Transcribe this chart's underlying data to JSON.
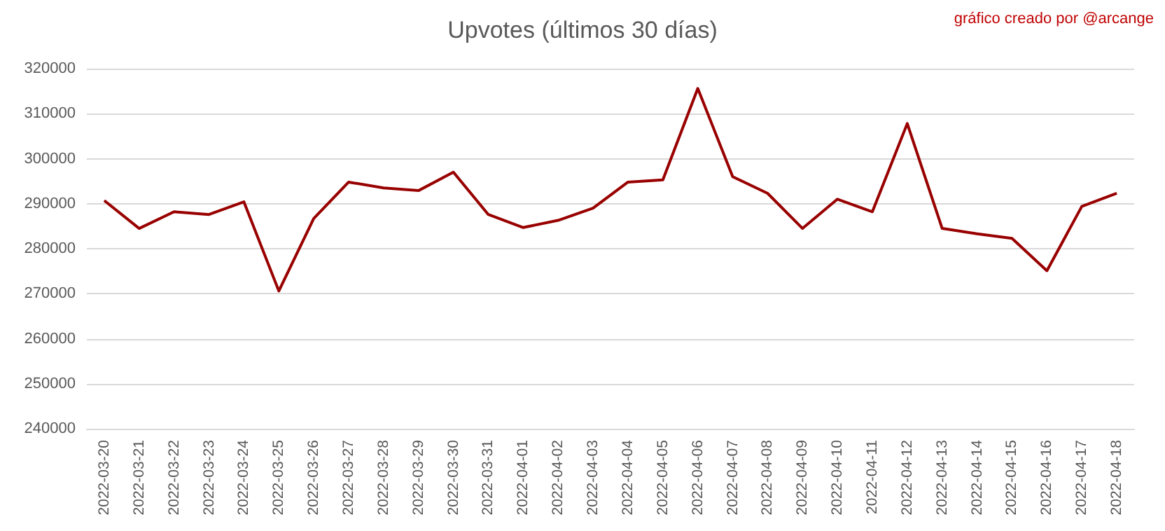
{
  "chart_data": {
    "type": "line",
    "title": "Upvotes (últimos 30 días)",
    "annotations": [
      "gráfico creado por @arcange"
    ],
    "categories": [
      "2022-03-20",
      "2022-03-21",
      "2022-03-22",
      "2022-03-23",
      "2022-03-24",
      "2022-03-25",
      "2022-03-26",
      "2022-03-27",
      "2022-03-28",
      "2022-03-29",
      "2022-03-30",
      "2022-03-31",
      "2022-04-01",
      "2022-04-02",
      "2022-04-03",
      "2022-04-04",
      "2022-04-05",
      "2022-04-06",
      "2022-04-07",
      "2022-04-08",
      "2022-04-09",
      "2022-04-10",
      "2022-04-11",
      "2022-04-12",
      "2022-04-13",
      "2022-04-14",
      "2022-04-15",
      "2022-04-16",
      "2022-04-17",
      "2022-04-18"
    ],
    "series": [
      {
        "color": "#990000",
        "values": [
          290700,
          284500,
          288200,
          287600,
          290400,
          270600,
          286700,
          294800,
          293500,
          292900,
          297000,
          287600,
          284700,
          286300,
          289000,
          294800,
          295300,
          315600,
          296000,
          292300,
          284500,
          291000,
          288200,
          307800,
          284500,
          283300,
          282300,
          275100,
          289400,
          292300
        ]
      }
    ],
    "ylim": [
      240000,
      320000
    ],
    "yticks": [
      240000,
      250000,
      260000,
      270000,
      280000,
      290000,
      300000,
      310000,
      320000
    ],
    "grid": "y",
    "marker": "none",
    "line_style": "solid"
  }
}
